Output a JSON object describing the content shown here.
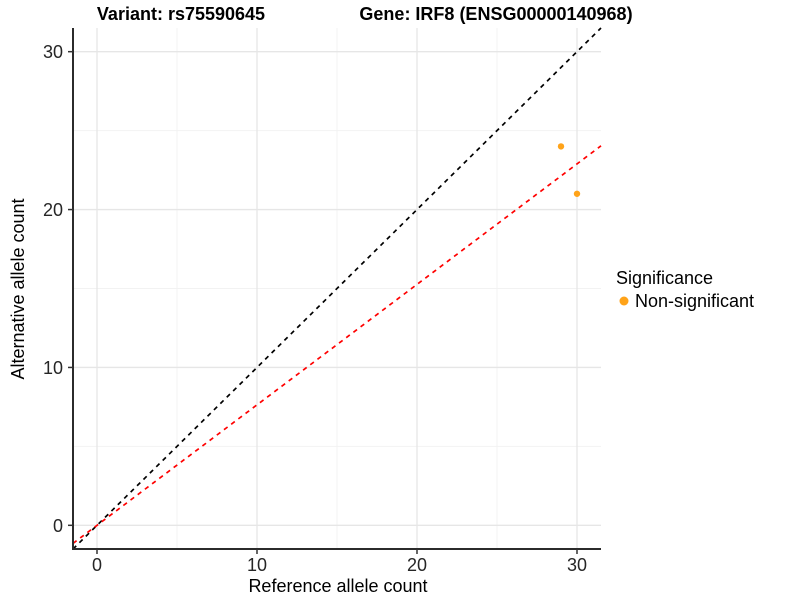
{
  "chart_data": {
    "type": "scatter",
    "title_left": "Variant: rs75590645",
    "title_right": "Gene: IRF8 (ENSG00000140968)",
    "xlabel": "Reference allele count",
    "ylabel": "Alternative allele count",
    "x_domain": [
      -1.5,
      31.5
    ],
    "y_domain": [
      -1.5,
      31.5
    ],
    "x_ticks": [
      0,
      10,
      20,
      30
    ],
    "y_ticks": [
      0,
      10,
      20,
      30
    ],
    "x_minor_ticks": [
      5,
      15,
      25
    ],
    "y_minor_ticks": [
      5,
      15,
      25
    ],
    "grid": "major+minor",
    "legend_position": "right",
    "series": [
      {
        "name": "Non-significant",
        "color": "#FFA319",
        "point_radius": 3.2,
        "points": [
          {
            "x": 29,
            "y": 24
          },
          {
            "x": 30,
            "y": 21
          }
        ]
      }
    ],
    "reference_lines": [
      {
        "name": "identity-line",
        "slope": 1,
        "intercept": 0,
        "color": "#000000",
        "style": "dashed"
      },
      {
        "name": "allelic-ratio-line",
        "slope": 0.763,
        "intercept": 0,
        "color": "#FF0000",
        "style": "dashed"
      }
    ],
    "legend": {
      "title": "Significance",
      "items": [
        {
          "label": "Non-significant",
          "color": "#FFA319"
        }
      ]
    },
    "style": {
      "axis_line_color": "#2b2b2b",
      "tick_color": "#333333",
      "major_grid_color": "#e6e6e6",
      "minor_grid_color": "#f2f2f2",
      "background": "#ffffff"
    }
  }
}
